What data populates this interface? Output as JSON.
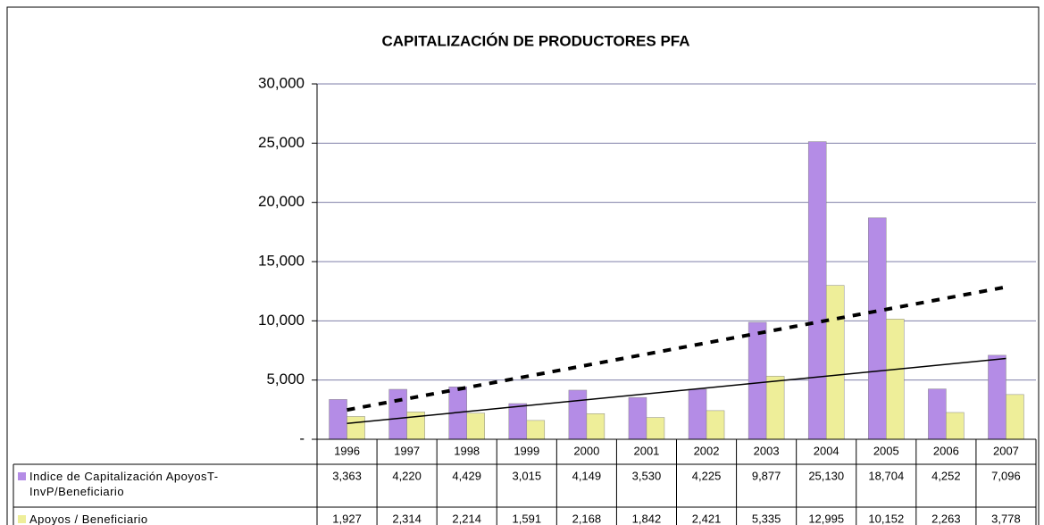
{
  "chart_data": {
    "type": "bar",
    "title": "CAPITALIZACIÓN DE PRODUCTORES PFA",
    "categories": [
      "1996",
      "1997",
      "1998",
      "1999",
      "2000",
      "2001",
      "2002",
      "2003",
      "2004",
      "2005",
      "2006",
      "2007"
    ],
    "series": [
      {
        "name": "Indice de Capitalización ApoyosT-InvP/Beneficiario",
        "color": "#b48ce6",
        "values": [
          3363,
          4220,
          4429,
          3015,
          4149,
          3530,
          4225,
          9877,
          25130,
          18704,
          4252,
          7096
        ],
        "value_labels": [
          "3,363",
          "4,220",
          "4,429",
          "3,015",
          "4,149",
          "3,530",
          "4,225",
          "9,877",
          "25,130",
          "18,704",
          "4,252",
          "7,096"
        ]
      },
      {
        "name": "Apoyos / Beneficiario",
        "color": "#eeee99",
        "values": [
          1927,
          2314,
          2214,
          1591,
          2168,
          1842,
          2421,
          5335,
          12995,
          10152,
          2263,
          3778
        ],
        "value_labels": [
          "1,927",
          "2,314",
          "2,214",
          "1,591",
          "2,168",
          "1,842",
          "2,421",
          "5,335",
          "12,995",
          "10,152",
          "2,263",
          "3,778"
        ]
      }
    ],
    "ylim": [
      0,
      30000
    ],
    "yticks": [
      {
        "value": 0,
        "label": "-"
      },
      {
        "value": 5000,
        "label": "5,000"
      },
      {
        "value": 10000,
        "label": "10,000"
      },
      {
        "value": 15000,
        "label": "15,000"
      },
      {
        "value": 20000,
        "label": "20,000"
      },
      {
        "value": 25000,
        "label": "25,000"
      },
      {
        "value": 30000,
        "label": "30,000"
      }
    ],
    "grid": true
  }
}
